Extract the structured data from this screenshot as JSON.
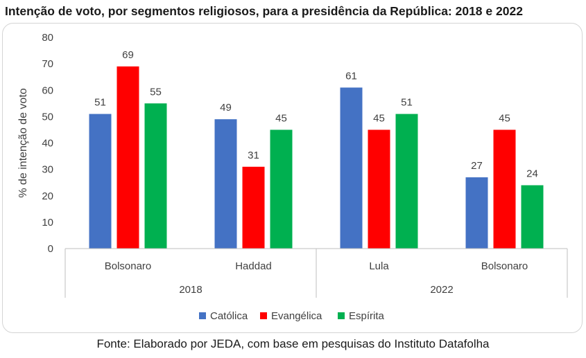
{
  "title": "Intenção de voto, por segmentos religiosos, para a presidência da República: 2018 e 2022",
  "source": "Fonte: Elaborado por JEDA, com base em pesquisas do Instituto Datafolha",
  "chart_data": {
    "type": "bar",
    "ylabel": "% de intenção de voto",
    "ylim": [
      0,
      80
    ],
    "yticks": [
      "0",
      "10",
      "20",
      "30",
      "40",
      "50",
      "60",
      "70",
      "80"
    ],
    "grid": false,
    "legend_position": "bottom",
    "groups": [
      {
        "label": "2018",
        "categories": [
          "Bolsonaro",
          "Haddad"
        ]
      },
      {
        "label": "2022",
        "categories": [
          "Lula",
          "Bolsonaro"
        ]
      }
    ],
    "categories": [
      "Bolsonaro",
      "Haddad",
      "Lula",
      "Bolsonaro"
    ],
    "series": [
      {
        "name": "Católica",
        "color": "#4472C4",
        "values": [
          51,
          49,
          61,
          27
        ]
      },
      {
        "name": "Evangélica",
        "color": "#FF0000",
        "values": [
          69,
          31,
          45,
          45
        ]
      },
      {
        "name": "Espírita",
        "color": "#00B050",
        "values": [
          55,
          45,
          51,
          24
        ]
      }
    ]
  }
}
